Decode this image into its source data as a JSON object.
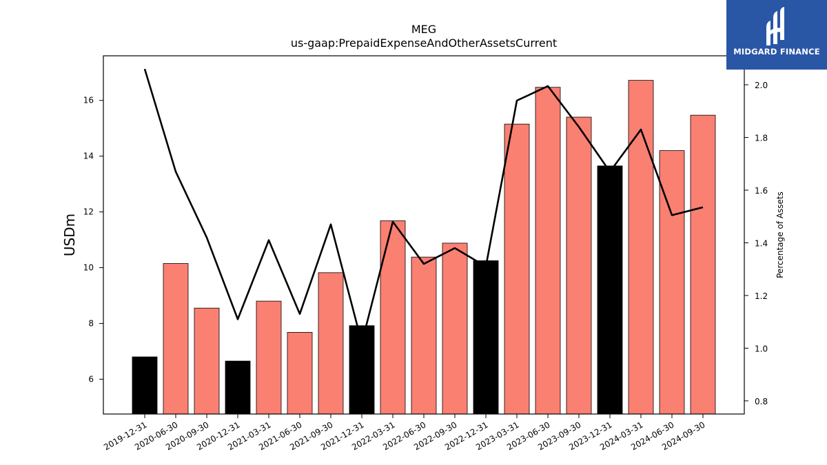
{
  "chart_data": {
    "type": "bar",
    "title": "MEG",
    "subtitle": "us-gaap:PrepaidExpenseAndOtherAssetsCurrent",
    "ylabel": "USDm",
    "ylabel_right": "Percentage of Assets",
    "ylim": [
      4.75,
      17.6
    ],
    "ylim_right": [
      0.75,
      2.11
    ],
    "yticks": [
      6,
      8,
      10,
      12,
      14,
      16
    ],
    "yticks_right": [
      0.8,
      1.0,
      1.2,
      1.4,
      1.6,
      1.8,
      2.0
    ],
    "yticks_right_labels": [
      "0.8",
      "1.0",
      "1.2",
      "1.4",
      "1.6",
      "1.8",
      "2.0"
    ],
    "categories": [
      "2019-12-31",
      "2020-06-30",
      "2020-09-30",
      "2020-12-31",
      "2021-03-31",
      "2021-06-30",
      "2021-09-30",
      "2021-12-31",
      "2022-03-31",
      "2022-06-30",
      "2022-09-30",
      "2022-12-31",
      "2023-03-31",
      "2023-06-30",
      "2023-09-30",
      "2023-12-31",
      "2024-03-31",
      "2024-06-30",
      "2024-09-30"
    ],
    "series": [
      {
        "kind": "bar",
        "values": [
          6.8,
          10.15,
          8.55,
          6.65,
          8.8,
          7.68,
          9.82,
          7.92,
          11.68,
          10.38,
          10.88,
          10.25,
          15.15,
          16.47,
          15.4,
          13.65,
          16.72,
          14.2,
          15.47
        ],
        "year_end": [
          true,
          false,
          false,
          true,
          false,
          false,
          false,
          true,
          false,
          false,
          false,
          true,
          false,
          false,
          false,
          true,
          false,
          false,
          false
        ]
      },
      {
        "kind": "line",
        "axis": "right",
        "values": [
          2.06,
          1.67,
          1.42,
          1.11,
          1.41,
          1.13,
          1.47,
          1.02,
          1.48,
          1.32,
          1.38,
          1.31,
          1.94,
          1.995,
          1.84,
          1.67,
          1.83,
          1.505,
          1.535
        ]
      }
    ],
    "colors": {
      "bar": "#fa8072",
      "bar_year_end": "#000000",
      "line": "#000000"
    },
    "grid": false,
    "legend": "none"
  },
  "logo": {
    "text": "MIDGARD FINANCE",
    "bg": "#2a56a6"
  }
}
